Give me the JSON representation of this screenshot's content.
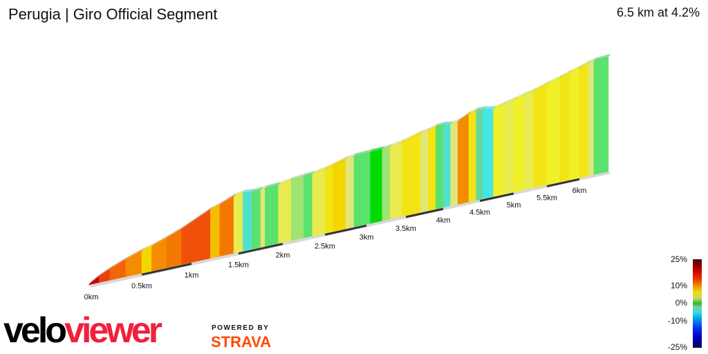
{
  "header": {
    "title": "Perugia | Giro Official Segment",
    "summary": "6.5 km at 4.2%"
  },
  "chart_data": {
    "type": "area",
    "title": "Perugia | Giro Official Segment",
    "distance_km": 6.5,
    "average_gradient_pct": 4.2,
    "x_ticks": [
      "0km",
      "0.5km",
      "1km",
      "1.5km",
      "2km",
      "2.5km",
      "3km",
      "3.5km",
      "4km",
      "4.5km",
      "5km",
      "5.5km",
      "6km"
    ],
    "segments": [
      {
        "from": 0.0,
        "to": 0.1,
        "gradient": 18
      },
      {
        "from": 0.1,
        "to": 0.2,
        "gradient": 14
      },
      {
        "from": 0.2,
        "to": 0.35,
        "gradient": 12
      },
      {
        "from": 0.35,
        "to": 0.5,
        "gradient": 10
      },
      {
        "from": 0.5,
        "to": 0.6,
        "gradient": 7
      },
      {
        "from": 0.6,
        "to": 0.75,
        "gradient": 10
      },
      {
        "from": 0.75,
        "to": 0.9,
        "gradient": 11
      },
      {
        "from": 0.9,
        "to": 1.2,
        "gradient": 13
      },
      {
        "from": 1.2,
        "to": 1.3,
        "gradient": 8
      },
      {
        "from": 1.3,
        "to": 1.45,
        "gradient": 11
      },
      {
        "from": 1.45,
        "to": 1.55,
        "gradient": 4
      },
      {
        "from": 1.55,
        "to": 1.65,
        "gradient": -3
      },
      {
        "from": 1.65,
        "to": 1.75,
        "gradient": 1
      },
      {
        "from": 1.75,
        "to": 1.8,
        "gradient": 3
      },
      {
        "from": 1.8,
        "to": 1.95,
        "gradient": 1
      },
      {
        "from": 1.95,
        "to": 2.1,
        "gradient": 4
      },
      {
        "from": 2.1,
        "to": 2.25,
        "gradient": 2
      },
      {
        "from": 2.25,
        "to": 2.35,
        "gradient": 1
      },
      {
        "from": 2.35,
        "to": 2.5,
        "gradient": 4
      },
      {
        "from": 2.5,
        "to": 2.6,
        "gradient": 6
      },
      {
        "from": 2.6,
        "to": 2.75,
        "gradient": 7
      },
      {
        "from": 2.75,
        "to": 2.85,
        "gradient": 3
      },
      {
        "from": 2.85,
        "to": 3.05,
        "gradient": 1
      },
      {
        "from": 3.05,
        "to": 3.2,
        "gradient": 0
      },
      {
        "from": 3.2,
        "to": 3.3,
        "gradient": 2
      },
      {
        "from": 3.3,
        "to": 3.45,
        "gradient": 4
      },
      {
        "from": 3.45,
        "to": 3.7,
        "gradient": 6
      },
      {
        "from": 3.7,
        "to": 3.8,
        "gradient": 3
      },
      {
        "from": 3.8,
        "to": 3.9,
        "gradient": 6
      },
      {
        "from": 3.9,
        "to": 4.0,
        "gradient": 1
      },
      {
        "from": 4.0,
        "to": 4.1,
        "gradient": -3
      },
      {
        "from": 4.1,
        "to": 4.2,
        "gradient": 3
      },
      {
        "from": 4.2,
        "to": 4.35,
        "gradient": 10
      },
      {
        "from": 4.35,
        "to": 4.45,
        "gradient": 6
      },
      {
        "from": 4.45,
        "to": 4.55,
        "gradient": -1
      },
      {
        "from": 4.55,
        "to": 4.7,
        "gradient": -4
      },
      {
        "from": 4.7,
        "to": 4.85,
        "gradient": 5
      },
      {
        "from": 4.85,
        "to": 5.0,
        "gradient": 4
      },
      {
        "from": 5.0,
        "to": 5.15,
        "gradient": 5
      },
      {
        "from": 5.15,
        "to": 5.3,
        "gradient": 4
      },
      {
        "from": 5.3,
        "to": 5.5,
        "gradient": 6
      },
      {
        "from": 5.5,
        "to": 5.7,
        "gradient": 5
      },
      {
        "from": 5.7,
        "to": 5.85,
        "gradient": 6
      },
      {
        "from": 5.85,
        "to": 6.0,
        "gradient": 5
      },
      {
        "from": 6.0,
        "to": 6.15,
        "gradient": 6
      },
      {
        "from": 6.15,
        "to": 6.25,
        "gradient": 3
      },
      {
        "from": 6.25,
        "to": 6.3,
        "gradient": 1
      },
      {
        "from": 6.3,
        "to": 6.5,
        "gradient": 1
      }
    ],
    "legend": {
      "labels": [
        "25%",
        "10%",
        "0%",
        "-10%",
        "-25%"
      ],
      "placement": "bottom-right"
    }
  },
  "branding": {
    "logo": "veloviewer",
    "logo_part1": "velo",
    "logo_part2": "viewer",
    "powered_by": "POWERED BY",
    "strava": "STRAVA"
  }
}
